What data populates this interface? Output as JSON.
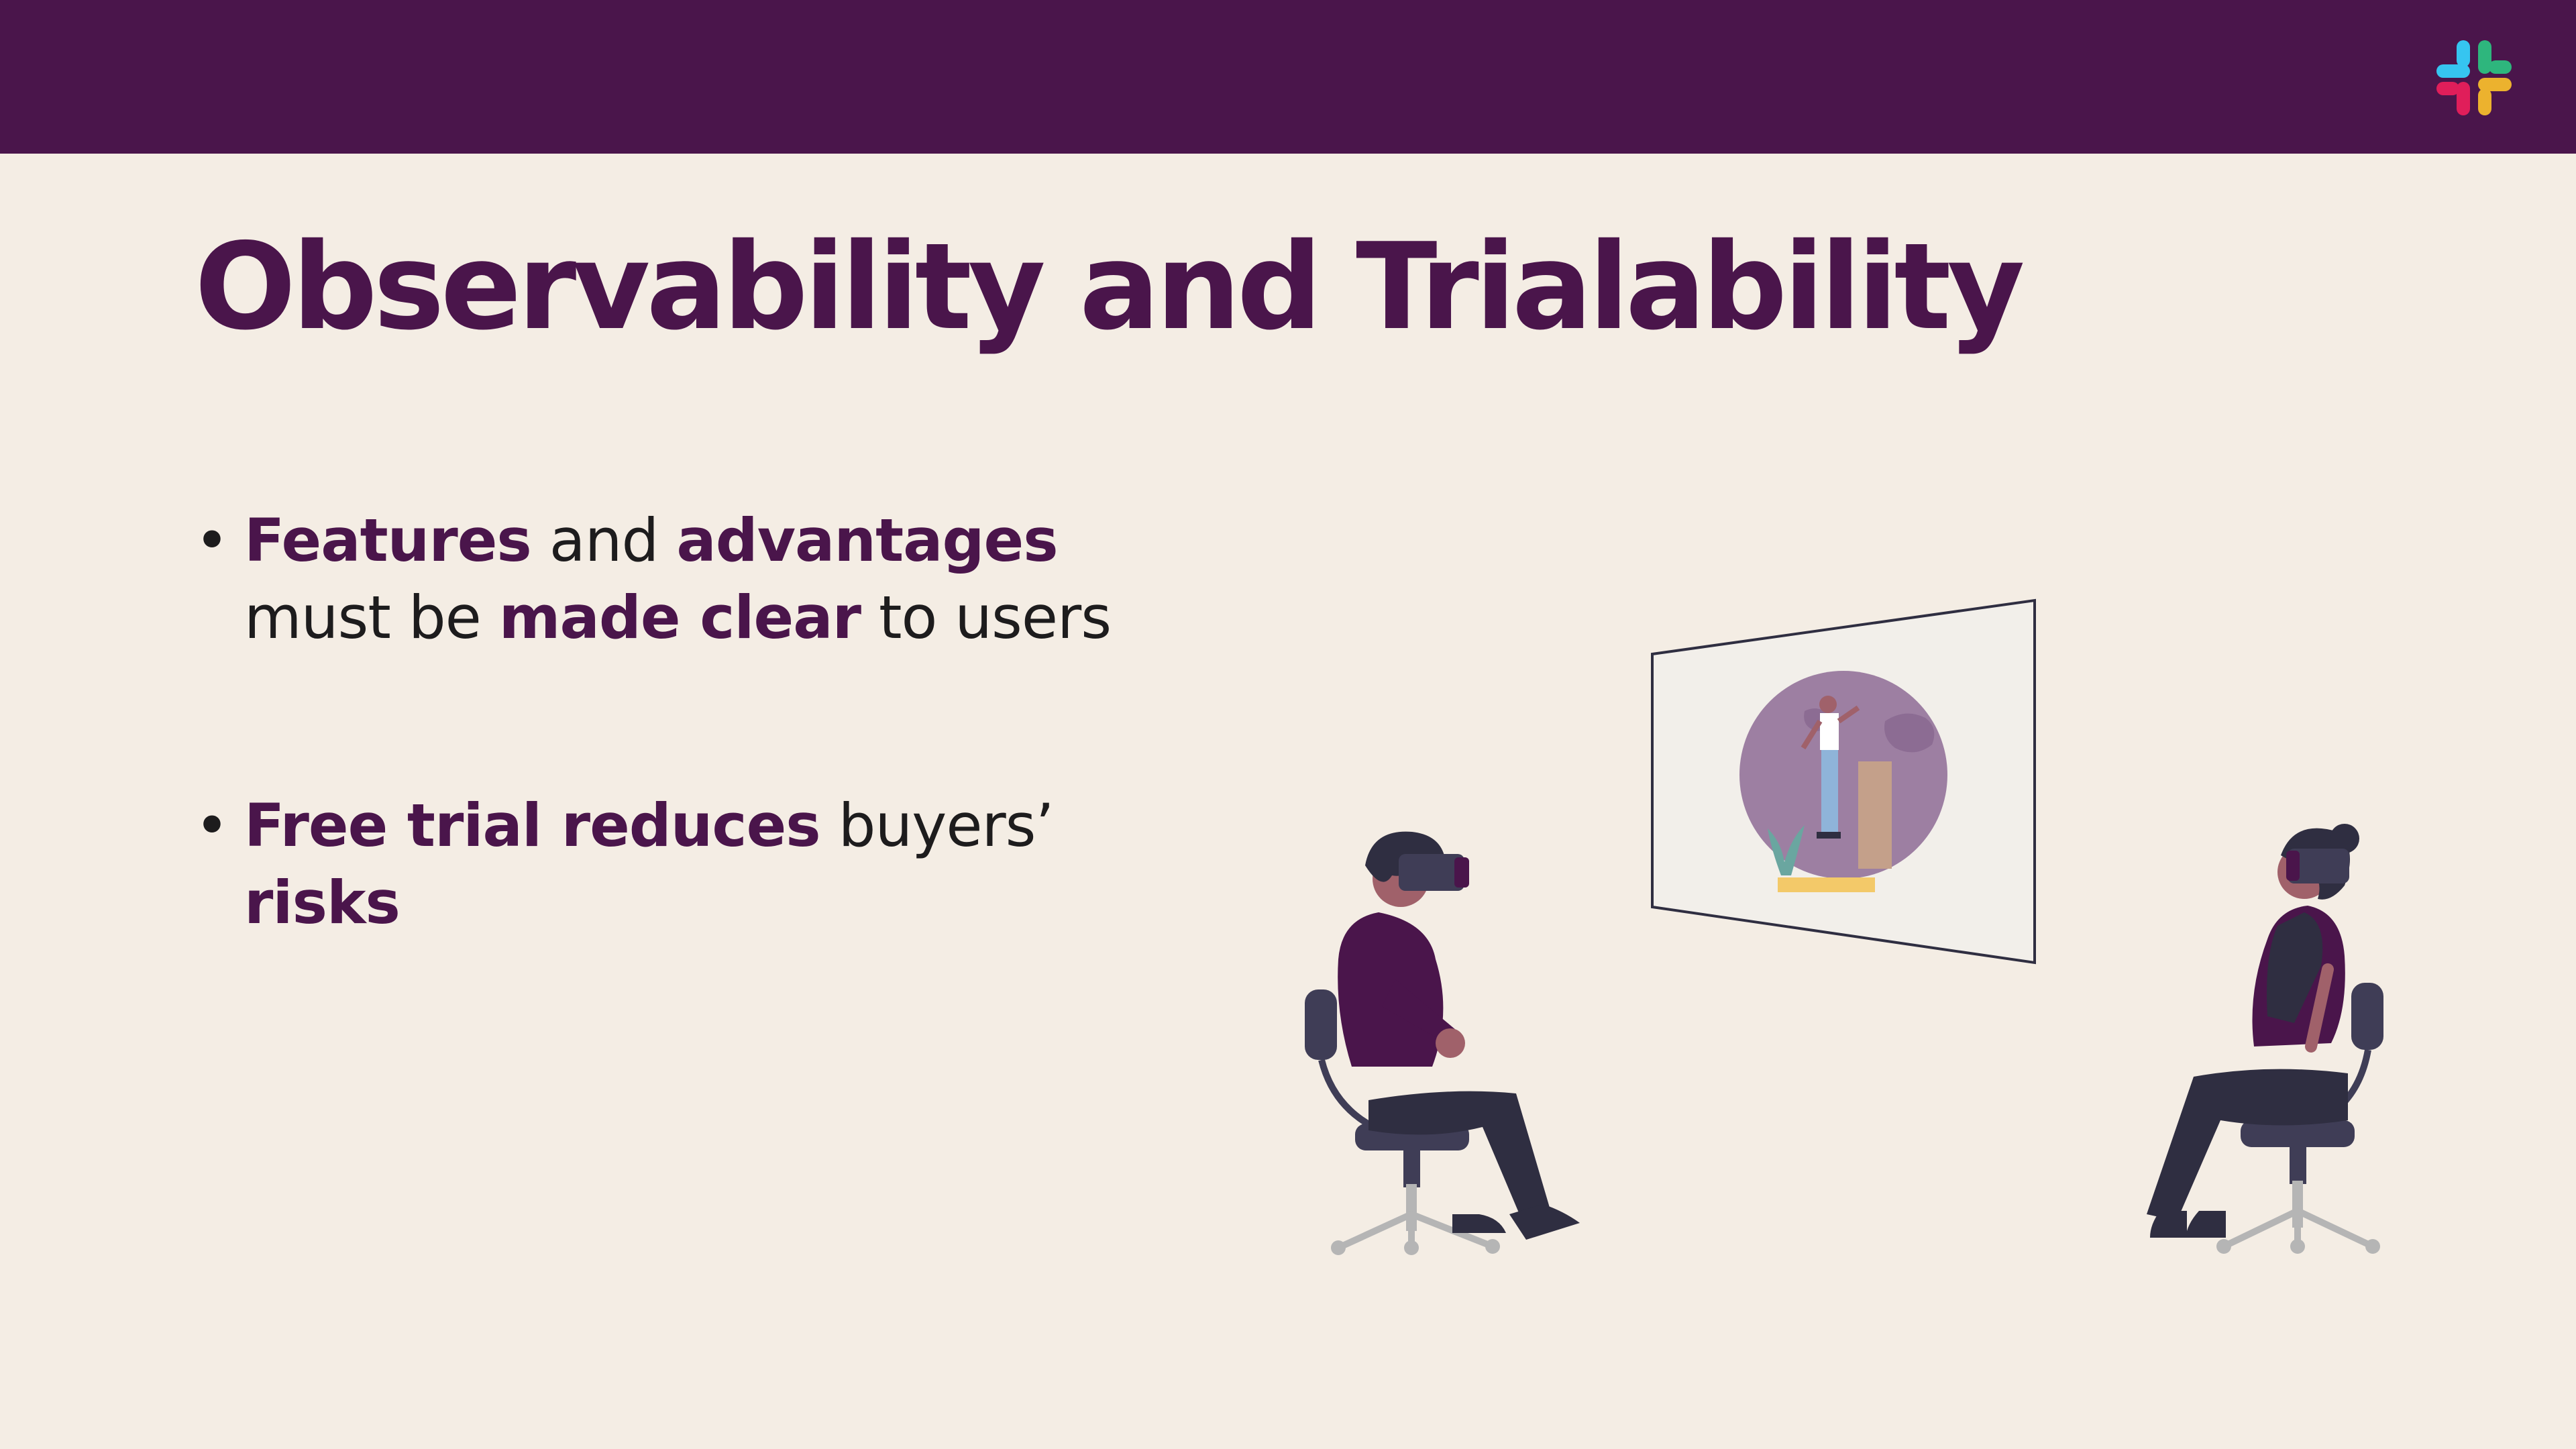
{
  "slide": {
    "title": "Observability and Trialability",
    "bullets": [
      {
        "parts": [
          {
            "text": "Features",
            "bold": true
          },
          {
            "text": " and ",
            "bold": false
          },
          {
            "text": "advantages",
            "bold": true
          },
          {
            "text": " must be ",
            "bold": false
          },
          {
            "text": "made clear",
            "bold": true
          },
          {
            "text": " to users",
            "bold": false
          }
        ]
      },
      {
        "parts": [
          {
            "text": "Free trial reduces",
            "bold": true
          },
          {
            "text": " buyers’ ",
            "bold": false
          },
          {
            "text": "risks",
            "bold": true
          }
        ]
      }
    ]
  },
  "colors": {
    "header": "#4A154B",
    "background": "#F4EDE4",
    "accent": "#4A154B",
    "body_text": "#1D1C1D"
  },
  "icons": {
    "logo": "slack-logo-icon",
    "illustration": "vr-headset-presentation-illustration"
  }
}
